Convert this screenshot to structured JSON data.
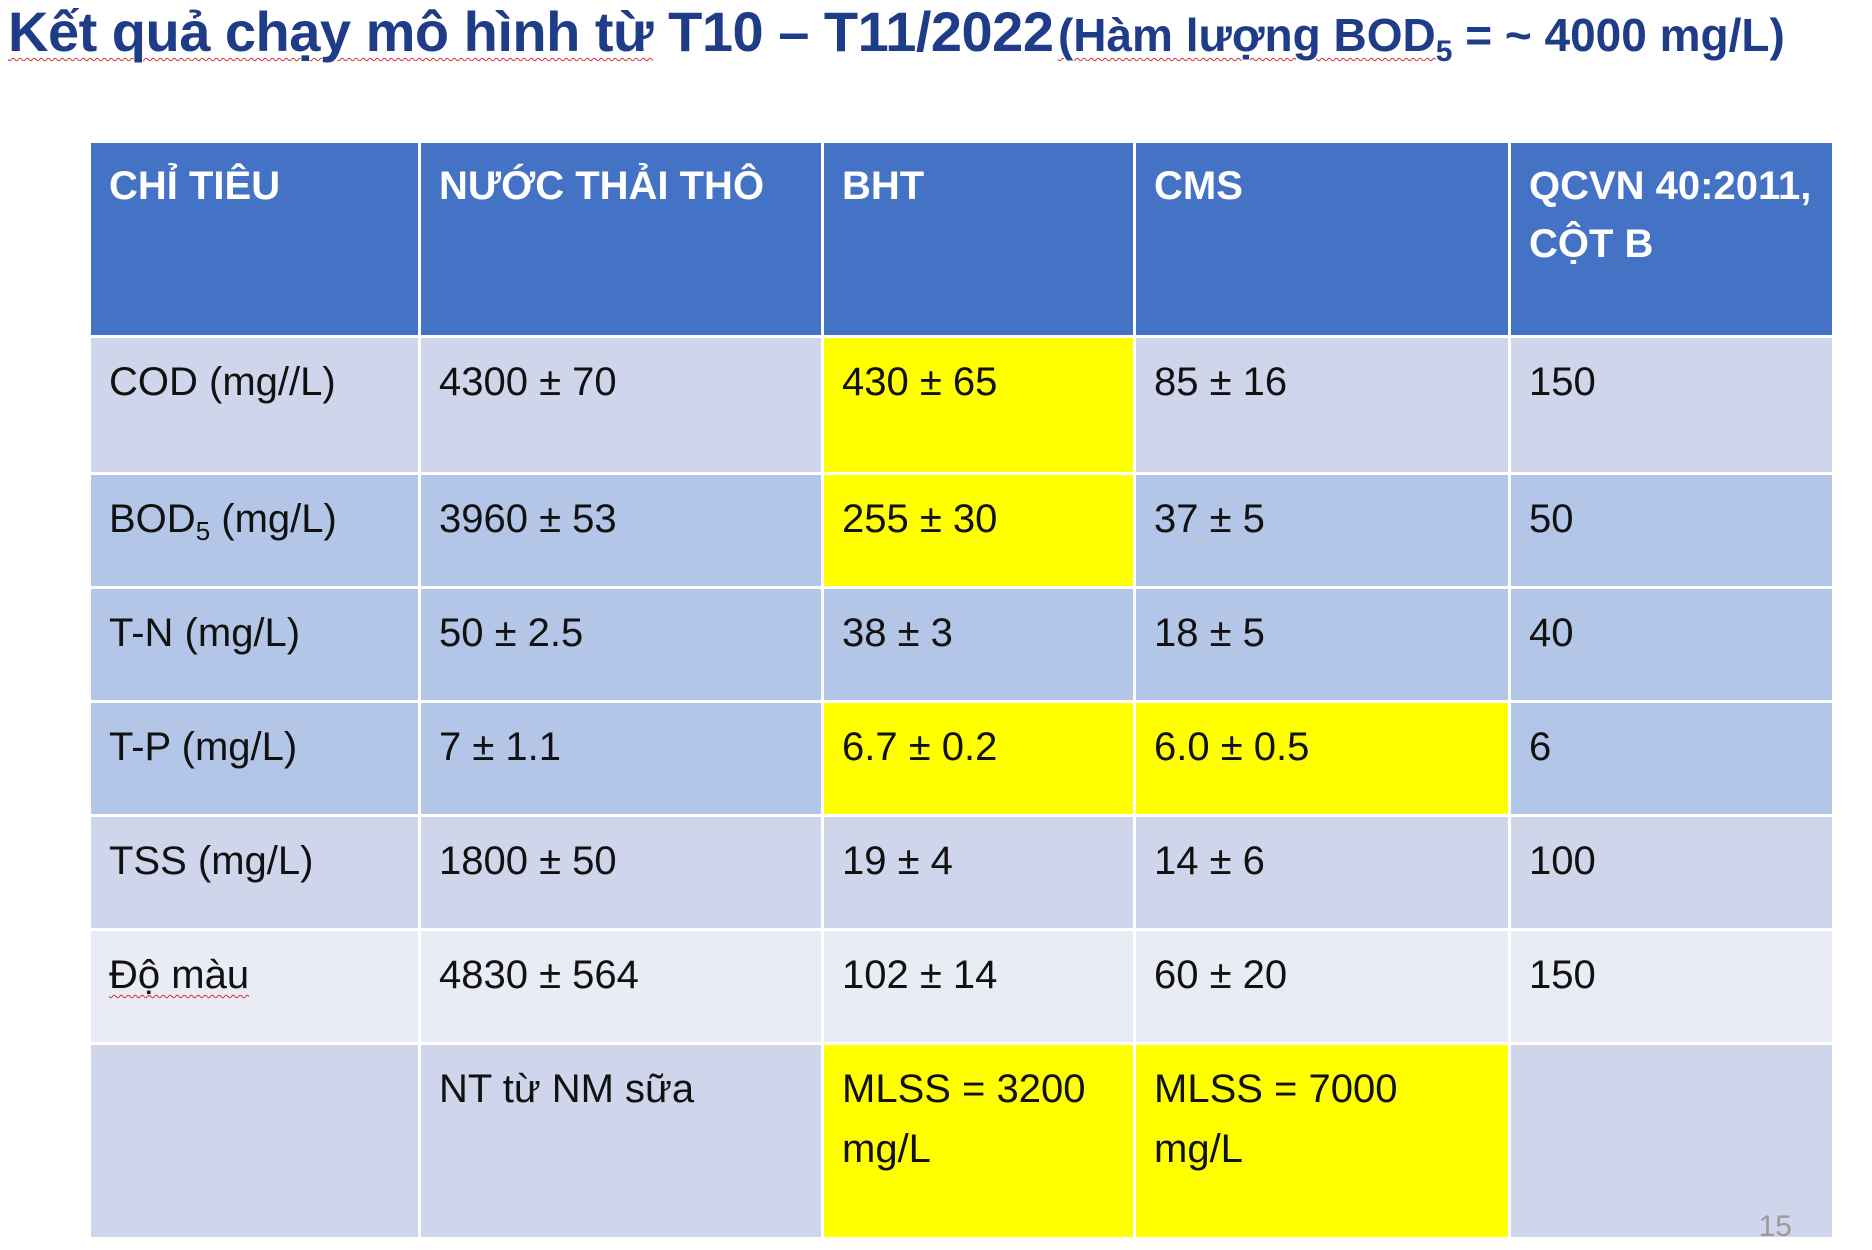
{
  "title": {
    "main_prefix": "Kết quả chạy mô hình từ",
    "main_period": "T10 – T11/2022",
    "paren_prefix": "(Hàm lượng BOD",
    "paren_sub": "5",
    "paren_suffix": " = ~ 4000 mg/L)"
  },
  "table": {
    "headers": [
      "CHỈ TIÊU",
      "NƯỚC THẢI THÔ",
      "BHT",
      "CMS",
      "QCVN 40:2011, CỘT B"
    ],
    "rows": [
      {
        "param": "COD (mg//L)",
        "param_sub": "",
        "param_unit": "",
        "raw": "4300 ± 70",
        "bht": "430 ± 65",
        "cms": "85 ± 16",
        "qcvn": "150"
      },
      {
        "param": "BOD",
        "param_sub": "5",
        "param_unit": " (mg/L)",
        "raw": "3960 ± 53",
        "bht": "255 ± 30",
        "cms": "37 ± 5",
        "qcvn": "50"
      },
      {
        "param": "T-N (mg/L)",
        "param_sub": "",
        "param_unit": "",
        "raw": "50 ± 2.5",
        "bht": "38 ± 3",
        "cms": "18 ± 5",
        "qcvn": "40"
      },
      {
        "param": "T-P (mg/L)",
        "param_sub": "",
        "param_unit": "",
        "raw": "7 ± 1.1",
        "bht": "6.7 ± 0.2",
        "cms": "6.0 ± 0.5",
        "qcvn": "6"
      },
      {
        "param": "TSS (mg/L)",
        "param_sub": "",
        "param_unit": "",
        "raw": "1800 ± 50",
        "bht": "19 ± 4",
        "cms": "14 ± 6",
        "qcvn": "100"
      },
      {
        "param": "Độ màu",
        "param_sub": "",
        "param_unit": "",
        "raw": "4830 ± 564",
        "bht": "102 ± 14",
        "cms": "60 ± 20",
        "qcvn": "150"
      },
      {
        "param": "",
        "param_sub": "",
        "param_unit": "",
        "raw": "NT từ NM sữa",
        "bht": "MLSS = 3200 mg/L",
        "cms": "MLSS = 7000 mg/L",
        "qcvn": ""
      }
    ]
  },
  "highlight_color": "#ffff00",
  "header_color": "#4472c4",
  "title_color": "#1f3c88",
  "page_number": "15"
}
